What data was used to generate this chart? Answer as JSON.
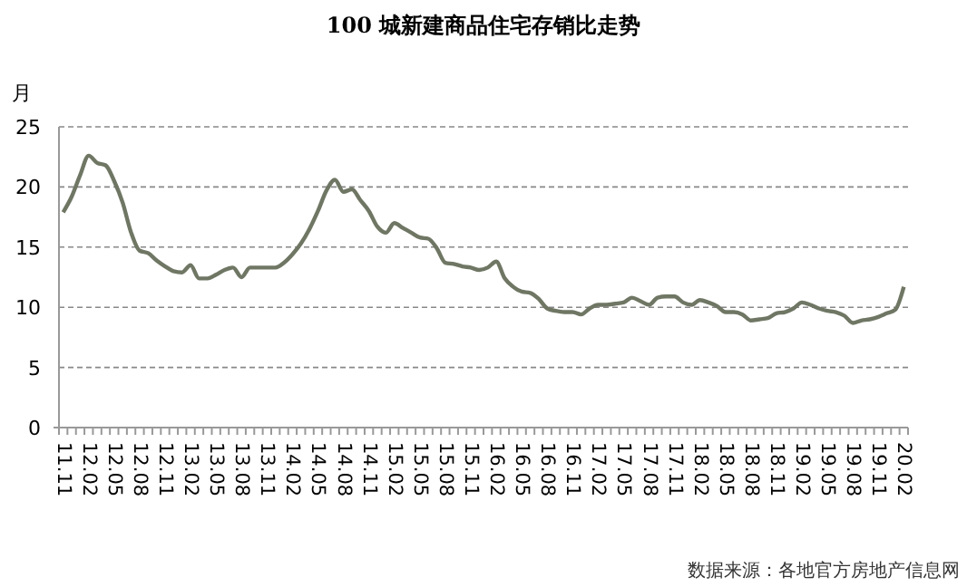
{
  "chart_data": {
    "type": "line",
    "title": "100 城新建商品住宅存销比走势",
    "ylabel": "月",
    "categories": [
      "11.11",
      null,
      null,
      "12.02",
      null,
      null,
      "12.05",
      null,
      null,
      "12.08",
      null,
      null,
      "12.11",
      null,
      null,
      "13.02",
      null,
      null,
      "13.05",
      null,
      null,
      "13.08",
      null,
      null,
      "13.11",
      null,
      null,
      "14.02",
      null,
      null,
      "14.05",
      null,
      null,
      "14.08",
      null,
      null,
      "14.11",
      null,
      null,
      "15.02",
      null,
      null,
      "15.05",
      null,
      null,
      "15.08",
      null,
      null,
      "15.11",
      null,
      null,
      "16.02",
      null,
      null,
      "16.05",
      null,
      null,
      "16.08",
      null,
      null,
      "16.11",
      null,
      null,
      "17.02",
      null,
      null,
      "17.05",
      null,
      null,
      "17.08",
      null,
      null,
      "17.11",
      null,
      null,
      "18.02",
      null,
      null,
      "18.05",
      null,
      null,
      "18.08",
      null,
      null,
      "18.11",
      null,
      null,
      "19.02",
      null,
      null,
      "19.05",
      null,
      null,
      "19.08",
      null,
      null,
      "19.11",
      null,
      null,
      "20.02"
    ],
    "series": [
      {
        "color": "#6f7764",
        "values": [
          17.9,
          19.2,
          21,
          22.6,
          22,
          21.8,
          20.5,
          18.7,
          16.2,
          14.7,
          14.5,
          13.9,
          13.4,
          13,
          12.9,
          13.5,
          12.4,
          12.4,
          12.7,
          13.1,
          13.3,
          12.5,
          13.3,
          13.3,
          13.3,
          13.3,
          13.7,
          14.4,
          15.3,
          16.5,
          18,
          19.7,
          20.6,
          19.6,
          19.8,
          18.9,
          18,
          16.7,
          16.2,
          17,
          16.6,
          16.2,
          15.8,
          15.7,
          14.9,
          13.7,
          13.6,
          13.4,
          13.3,
          13.1,
          13.3,
          13.8,
          12.4,
          11.7,
          11.3,
          11.2,
          10.7,
          9.9,
          9.7,
          9.6,
          9.6,
          9.4,
          9.9,
          10.2,
          10.2,
          10.3,
          10.4,
          10.8,
          10.5,
          10.2,
          10.8,
          10.9,
          10.9,
          10.4,
          10.2,
          10.6,
          10.4,
          10.1,
          9.6,
          9.6,
          9.4,
          8.9,
          9,
          9.1,
          9.5,
          9.6,
          9.9,
          10.4,
          10.2,
          9.9,
          9.7,
          9.6,
          9.3,
          8.7,
          8.9,
          9,
          9.2,
          9.5,
          9.8,
          11.7
        ]
      }
    ],
    "ylim": [
      0,
      25
    ],
    "yticks": [
      0,
      5,
      10,
      15,
      20,
      25
    ],
    "grid": "y",
    "marker": "none",
    "line_style": "solid",
    "annotations": [
      "数据来源：各地官方房地产信息网"
    ]
  }
}
